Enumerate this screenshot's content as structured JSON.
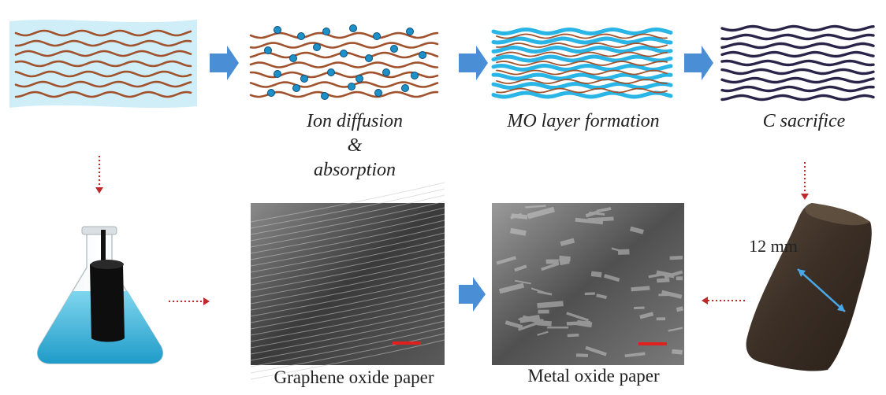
{
  "steps": {
    "ion_line1": "Ion diffusion",
    "ion_line2": "&",
    "ion_line3": "absorption",
    "mo_layer": "MO layer formation",
    "c_sacrifice": "C sacrifice"
  },
  "captions": {
    "graphene": "Graphene oxide paper",
    "metal": "Metal oxide paper"
  },
  "measurement": "12 mm",
  "colors": {
    "fiber_brown": "#a0522d",
    "ion_blue": "#1e90c8",
    "cyan_layer": "#29b6e6",
    "dark_purple": "#2a2448",
    "arrow_blue": "#4a8fd6",
    "dotted_red": "#c0282a",
    "scale_bar": "#e0201c",
    "panel_bg": "#cfeef8"
  }
}
